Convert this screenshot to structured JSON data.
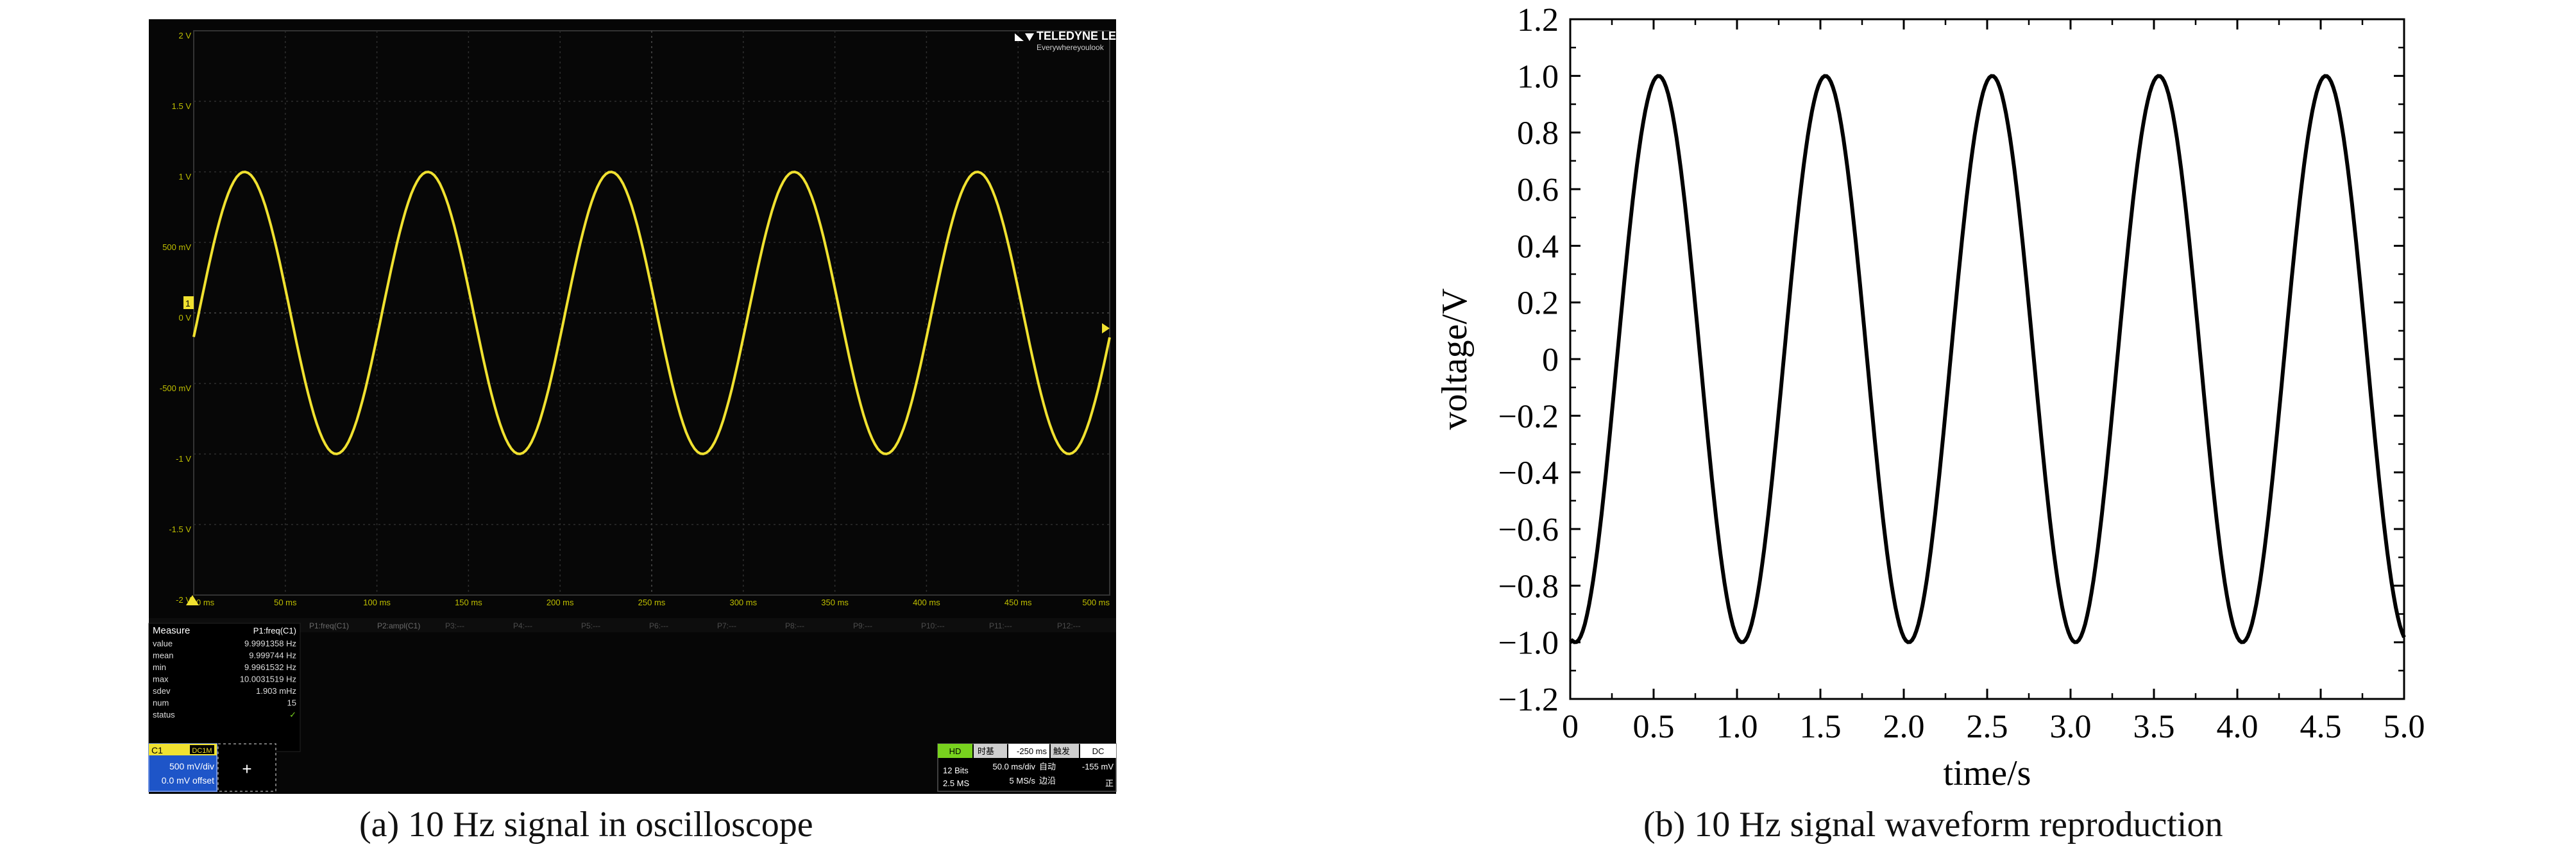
{
  "captions": {
    "a": "(a) 10 Hz signal in oscilloscope",
    "b": "(b) 10 Hz signal waveform reproduction"
  },
  "scope": {
    "brand": "TELEDYNE LECROY",
    "brand_tagline": "Everywhereyoulook",
    "channel_marker": "1",
    "y_tick_labels": [
      "2 V",
      "1.5 V",
      "1 V",
      "500 mV",
      "0 V",
      "-500 mV",
      "-1 V",
      "-1.5 V",
      "-2 V"
    ],
    "x_tick_labels": [
      "0 ms",
      "50 ms",
      "100 ms",
      "150 ms",
      "200 ms",
      "250 ms",
      "300 ms",
      "350 ms",
      "400 ms",
      "450 ms",
      "500 ms"
    ],
    "param_tabs": [
      "P1:freq(C1)",
      "P2:ampl(C1)",
      "P3:---",
      "P4:---",
      "P5:---",
      "P6:---",
      "P7:---",
      "P8:---",
      "P9:---",
      "P10:---",
      "P11:---",
      "P12:---"
    ],
    "measure": {
      "title": "Measure",
      "column_header": "P1:freq(C1)",
      "rows": [
        {
          "label": "value",
          "value": "9.9991358 Hz"
        },
        {
          "label": "mean",
          "value": "9.999744 Hz"
        },
        {
          "label": "min",
          "value": "9.9961532 Hz"
        },
        {
          "label": "max",
          "value": "10.0031519 Hz"
        },
        {
          "label": "sdev",
          "value": "1.903 mHz"
        },
        {
          "label": "num",
          "value": "15"
        },
        {
          "label": "status",
          "value": "✓"
        }
      ]
    },
    "channel_box": {
      "name": "C1",
      "coupling": "DC1M",
      "vdiv": "500 mV/div",
      "offset": "0.0 mV offset"
    },
    "add_button": "+",
    "timebase": {
      "badge": "HD",
      "labels": [
        "时基",
        "-250 ms",
        "触发",
        "DC"
      ],
      "bits": "12 Bits",
      "sdiv": "50.0 ms/div",
      "mode": "自动",
      "level": "-155 mV",
      "samples": "2.5 MS",
      "rate": "5 MS/s",
      "edge": "边沿",
      "slope": "正"
    },
    "colors": {
      "background": "#060606",
      "grid": "#3a3a3a",
      "trace": "#f0e130",
      "panel": "#000000",
      "accent": "#1e55c8",
      "badge": "#78d21e"
    }
  },
  "chart_data": [
    {
      "type": "line",
      "title": "",
      "xlabel": "",
      "ylabel": "",
      "xlim": [
        0,
        500
      ],
      "ylim": [
        -2,
        2
      ],
      "series": [
        {
          "x": [
            0,
            12.5,
            25,
            37.5,
            50,
            62.5,
            75,
            87.5,
            100,
            112.5,
            125,
            137.5,
            150,
            162.5,
            175,
            187.5,
            200,
            212.5,
            225,
            237.5,
            250,
            262.5,
            275,
            287.5,
            300,
            312.5,
            325,
            337.5,
            350,
            362.5,
            375,
            387.5,
            400,
            412.5,
            425,
            437.5,
            450,
            462.5,
            475,
            487.5,
            500
          ],
          "y": [
            -0.17,
            0.58,
            0.98,
            0.81,
            0.17,
            -0.58,
            -0.98,
            -0.81,
            -0.17,
            0.58,
            0.98,
            0.81,
            0.17,
            -0.58,
            -0.98,
            -0.81,
            -0.17,
            0.58,
            0.98,
            0.81,
            0.17,
            -0.58,
            -0.98,
            -0.81,
            -0.17,
            0.58,
            0.98,
            0.81,
            0.17,
            -0.58,
            -0.98,
            -0.81,
            -0.17,
            0.58,
            0.98,
            0.81,
            0.17,
            -0.58,
            -0.98,
            -0.81,
            -0.17
          ]
        }
      ]
    },
    {
      "type": "line",
      "title": "",
      "xlabel": "time/s",
      "ylabel": "voltage/V",
      "xlim": [
        0,
        5
      ],
      "ylim": [
        -1.2,
        1.2
      ],
      "xticks": [
        0,
        0.5,
        1.0,
        1.5,
        2.0,
        2.5,
        3.0,
        3.5,
        4.0,
        4.5,
        5.0
      ],
      "xtick_labels": [
        "0",
        "0.5",
        "1.0",
        "1.5",
        "2.0",
        "2.5",
        "3.0",
        "3.5",
        "4.0",
        "4.5",
        "5.0"
      ],
      "yticks": [
        1.2,
        1.0,
        0.8,
        0.6,
        0.4,
        0.2,
        0,
        -0.2,
        -0.4,
        -0.6,
        -0.8,
        -1.0,
        -1.2
      ],
      "ytick_labels": [
        "1.2",
        "1.0",
        "0.8",
        "0.6",
        "0.4",
        "0.2",
        "0",
        "−0.2",
        "−0.4",
        "−0.6",
        "−0.8",
        "−1.0",
        "−1.2"
      ],
      "grid": false,
      "series": [
        {
          "x": [
            0,
            0.125,
            0.25,
            0.375,
            0.5,
            0.625,
            0.75,
            0.875,
            1.0,
            1.125,
            1.25,
            1.375,
            1.5,
            1.625,
            1.75,
            1.875,
            2.0,
            2.125,
            2.25,
            2.375,
            2.5,
            2.625,
            2.75,
            2.875,
            3.0,
            3.125,
            3.25,
            3.375,
            3.5,
            3.625,
            3.75,
            3.875,
            4.0,
            4.125,
            4.25,
            4.375,
            4.5,
            4.625,
            4.75,
            4.875,
            5.0
          ],
          "y": [
            -1.0,
            -0.65,
            0.0,
            0.71,
            1.0,
            0.71,
            0.0,
            -0.71,
            -1.0,
            -0.71,
            0.0,
            0.71,
            1.0,
            0.71,
            0.0,
            -0.71,
            -1.0,
            -0.71,
            0.0,
            0.71,
            1.0,
            0.71,
            0.0,
            -0.71,
            -1.0,
            -0.71,
            0.0,
            0.71,
            1.0,
            0.71,
            0.0,
            -0.71,
            -1.0,
            -0.71,
            0.0,
            0.71,
            1.0,
            0.71,
            0.0,
            -0.71,
            -0.98
          ]
        }
      ]
    }
  ]
}
